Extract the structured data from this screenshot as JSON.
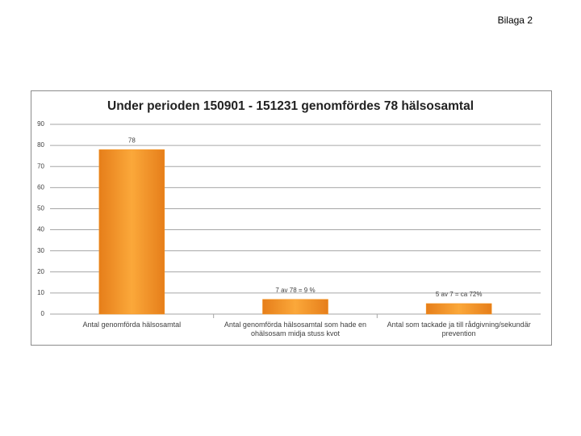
{
  "header": "Bilaga 2",
  "chart_data": {
    "type": "bar",
    "title": "Under perioden 150901 - 151231 genomfördes 78 hälsosamtal",
    "categories": [
      "Antal genomförda hälsosamtal",
      "Antal genomförda hälsosamtal som hade en ohälsosam midja stuss kvot",
      "Antal som tackade ja till rådgivning/sekundär prevention"
    ],
    "values": [
      78,
      7,
      5
    ],
    "value_labels": [
      "78",
      "7 av 78 = 9 %",
      "5 av 7 = ca 72%"
    ],
    "color": "#f7941d",
    "ylim": [
      0,
      90
    ],
    "yticks": [
      0,
      10,
      20,
      30,
      40,
      50,
      60,
      70,
      80,
      90
    ],
    "grid": true
  }
}
